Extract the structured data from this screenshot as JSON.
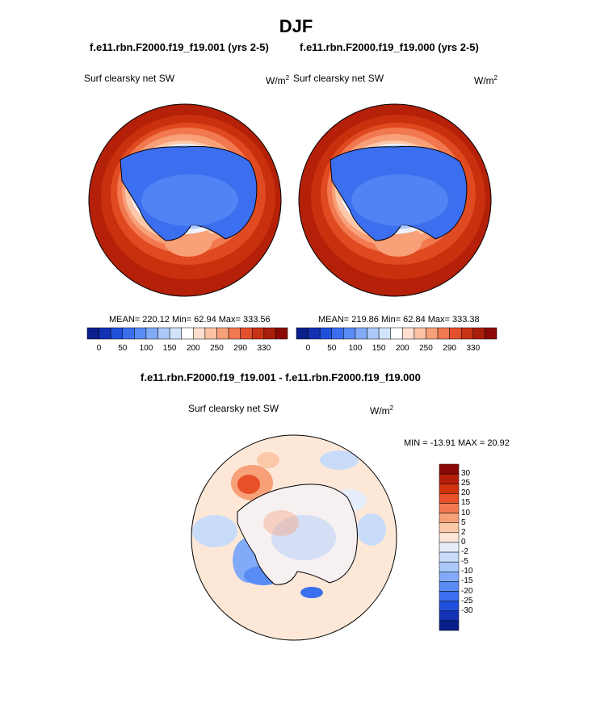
{
  "page": {
    "title": "DJF",
    "panel_left_title": "f.e11.rbn.F2000.f19_f19.001 (yrs 2-5)",
    "panel_right_title": "f.e11.rbn.F2000.f19_f19.000 (yrs 2-5)",
    "diff_title": "f.e11.rbn.F2000.f19_f19.001 - f.e11.rbn.F2000.f19_f19.000"
  },
  "panels": {
    "left": {
      "variable": "Surf clearsky net SW",
      "units_base": "W/m",
      "units_exp": "2",
      "stats": "MEAN= 220.12  Min=  62.94  Max= 333.56"
    },
    "right": {
      "variable": "Surf clearsky net SW",
      "units_base": "W/m",
      "units_exp": "2",
      "stats": "MEAN= 219.86  Min=  62.84  Max= 333.38"
    },
    "diff": {
      "variable": "Surf clearsky net SW",
      "units_base": "W/m",
      "units_exp": "2",
      "stats": "MIN = -13.91 MAX =  20.92"
    }
  },
  "colorbar_abs": {
    "colors": [
      "#0a1e8c",
      "#1432b4",
      "#1e50dc",
      "#3c6ef0",
      "#5a8cf5",
      "#82aaf8",
      "#aac8fa",
      "#d2e4fc",
      "#ffffff",
      "#fde0cf",
      "#fbc3a4",
      "#f8a078",
      "#f27850",
      "#e4502e",
      "#c83214",
      "#a81e0a",
      "#8c0a05"
    ],
    "labels": [
      "0",
      "50",
      "100",
      "150",
      "200",
      "250",
      "290",
      "330"
    ]
  },
  "colorbar_diff": {
    "colors": [
      "#8c0a05",
      "#b41e0a",
      "#d2320f",
      "#e8502a",
      "#f27850",
      "#f8a078",
      "#fbc8aa",
      "#fde8d8",
      "#e6eefc",
      "#c8dcfa",
      "#aac8fa",
      "#82aaf8",
      "#5a8cf5",
      "#3c6ef0",
      "#1e50dc",
      "#1432b4",
      "#0a1e8c"
    ],
    "labels": [
      "30",
      "25",
      "20",
      "15",
      "10",
      "5",
      "2",
      "0",
      "-2",
      "-5",
      "-10",
      "-15",
      "-20",
      "-25",
      "-30"
    ]
  }
}
